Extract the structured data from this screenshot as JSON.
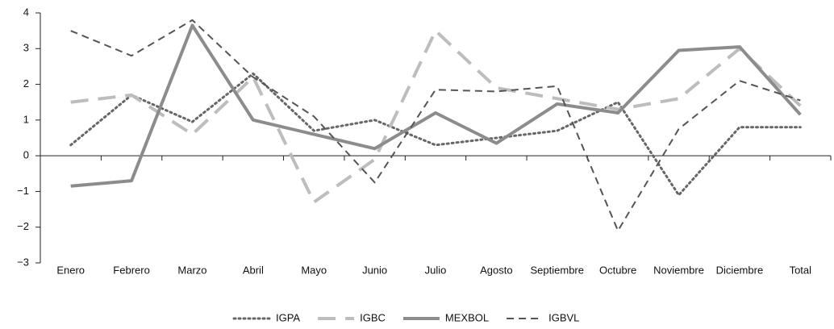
{
  "chart_data": {
    "type": "line",
    "categories": [
      "Enero",
      "Febrero",
      "Marzo",
      "Abril",
      "Mayo",
      "Junio",
      "Julio",
      "Agosto",
      "Septiembre",
      "Octubre",
      "Noviembre",
      "Diciembre",
      "Total"
    ],
    "series": [
      {
        "name": "IGPA",
        "color": "#666666",
        "style": "dotted",
        "values": [
          0.3,
          1.7,
          0.95,
          2.3,
          0.7,
          1.0,
          0.3,
          0.5,
          0.7,
          1.5,
          -1.1,
          0.8,
          0.8
        ]
      },
      {
        "name": "IGBC",
        "color": "#bdbdbd",
        "style": "dashed",
        "values": [
          1.5,
          1.7,
          0.6,
          2.2,
          -1.3,
          -0.1,
          3.5,
          1.9,
          1.6,
          1.3,
          1.6,
          3.0,
          1.4
        ]
      },
      {
        "name": "MEXBOL",
        "color": "#8c8c8c",
        "style": "solid",
        "values": [
          -0.85,
          -0.7,
          3.65,
          1.0,
          0.6,
          0.2,
          1.2,
          0.35,
          1.45,
          1.2,
          2.95,
          3.05,
          1.15
        ]
      },
      {
        "name": "IGBVL",
        "color": "#555555",
        "style": "shortdash",
        "values": [
          3.5,
          2.8,
          3.8,
          2.2,
          1.1,
          -0.75,
          1.85,
          1.8,
          1.95,
          -2.1,
          0.75,
          2.1,
          1.55
        ]
      }
    ],
    "ylim": [
      -3,
      4
    ],
    "yticks": [
      {
        "value": -3,
        "label": "−3"
      },
      {
        "value": -2,
        "label": "−2"
      },
      {
        "value": -1,
        "label": "−1"
      },
      0,
      1,
      2,
      3,
      4
    ],
    "grid": false,
    "legend": "bottom"
  }
}
